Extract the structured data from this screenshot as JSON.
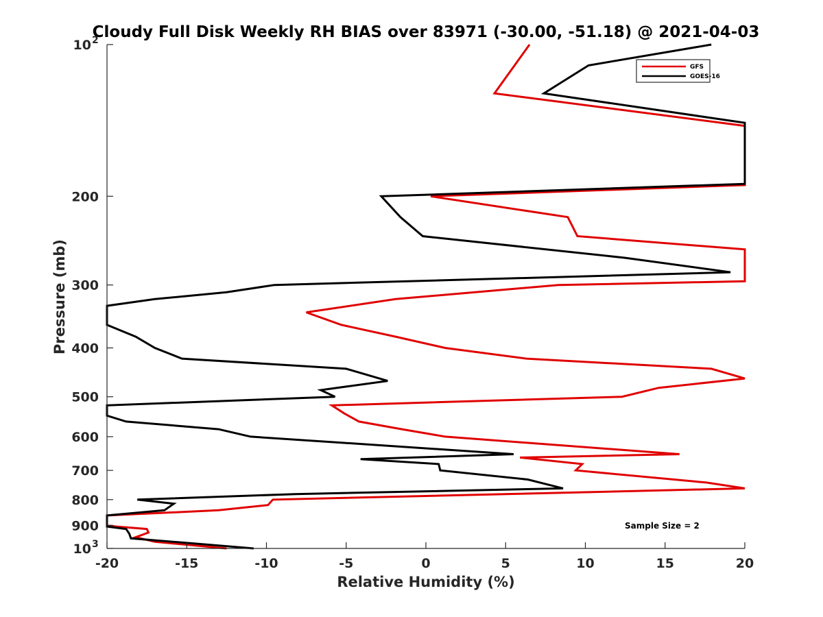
{
  "chart_data": {
    "type": "line",
    "title": "Cloudy Full Disk Weekly RH BIAS over 83971 (-30.00, -51.18) @ 2021-04-03",
    "xlabel": "Relative Humidity (%)",
    "ylabel": "Pressure (mb)",
    "xlim": [
      -20,
      20
    ],
    "ylim": [
      100,
      1000
    ],
    "yscale": "log",
    "y_reversed": true,
    "grid": false,
    "legend_position": "top-right",
    "x_ticks": [
      "-20",
      "-15",
      "-10",
      "-5",
      "0",
      "5",
      "10",
      "15",
      "20"
    ],
    "y_ticks": [
      {
        "value": 100,
        "base": "10",
        "exp": "2"
      },
      {
        "value": 200,
        "label": "200"
      },
      {
        "value": 300,
        "label": "300"
      },
      {
        "value": 400,
        "label": "400"
      },
      {
        "value": 500,
        "label": "500"
      },
      {
        "value": 600,
        "label": "600"
      },
      {
        "value": 700,
        "label": "700"
      },
      {
        "value": 800,
        "label": "800"
      },
      {
        "value": 900,
        "label": "900"
      },
      {
        "value": 1000,
        "base": "10",
        "exp": "3"
      }
    ],
    "annotation": "Sample Size = 2",
    "series": [
      {
        "name": "GFS",
        "color": "#e00000",
        "points": [
          {
            "x": 6.5,
            "y": 100
          },
          {
            "x": 4.3,
            "y": 125
          },
          {
            "x": 20.0,
            "y": 145
          },
          {
            "x": 20.0,
            "y": 190
          },
          {
            "x": 0.3,
            "y": 200
          },
          {
            "x": 8.9,
            "y": 220
          },
          {
            "x": 9.5,
            "y": 240
          },
          {
            "x": 20.0,
            "y": 255
          },
          {
            "x": 20.0,
            "y": 295
          },
          {
            "x": 8.3,
            "y": 300
          },
          {
            "x": -1.9,
            "y": 320
          },
          {
            "x": -7.5,
            "y": 340
          },
          {
            "x": -5.3,
            "y": 360
          },
          {
            "x": -1.9,
            "y": 380
          },
          {
            "x": 1.2,
            "y": 400
          },
          {
            "x": 6.3,
            "y": 420
          },
          {
            "x": 17.9,
            "y": 440
          },
          {
            "x": 20.0,
            "y": 460
          },
          {
            "x": 14.6,
            "y": 480
          },
          {
            "x": 12.3,
            "y": 500
          },
          {
            "x": -5.9,
            "y": 520
          },
          {
            "x": -5.1,
            "y": 540
          },
          {
            "x": -4.2,
            "y": 560
          },
          {
            "x": -1.5,
            "y": 580
          },
          {
            "x": 1.2,
            "y": 600
          },
          {
            "x": 15.9,
            "y": 650
          },
          {
            "x": 5.9,
            "y": 660
          },
          {
            "x": 9.8,
            "y": 680
          },
          {
            "x": 9.4,
            "y": 700
          },
          {
            "x": 17.6,
            "y": 740
          },
          {
            "x": 20.0,
            "y": 760
          },
          {
            "x": -9.6,
            "y": 800
          },
          {
            "x": -9.9,
            "y": 820
          },
          {
            "x": -13.0,
            "y": 840
          },
          {
            "x": -20.0,
            "y": 860
          },
          {
            "x": -20.0,
            "y": 900
          },
          {
            "x": -19.4,
            "y": 905
          },
          {
            "x": -17.5,
            "y": 915
          },
          {
            "x": -17.4,
            "y": 930
          },
          {
            "x": -18.2,
            "y": 950
          },
          {
            "x": -17.0,
            "y": 970
          },
          {
            "x": -12.5,
            "y": 1000
          }
        ]
      },
      {
        "name": "GOES-16",
        "color": "#000000",
        "points": [
          {
            "x": 17.9,
            "y": 100
          },
          {
            "x": 10.2,
            "y": 110
          },
          {
            "x": 7.4,
            "y": 125
          },
          {
            "x": 20.0,
            "y": 143
          },
          {
            "x": 20.0,
            "y": 189
          },
          {
            "x": -2.8,
            "y": 200
          },
          {
            "x": -1.6,
            "y": 220
          },
          {
            "x": -0.2,
            "y": 240
          },
          {
            "x": 12.5,
            "y": 265
          },
          {
            "x": 19.1,
            "y": 283
          },
          {
            "x": -9.5,
            "y": 300
          },
          {
            "x": -12.5,
            "y": 310
          },
          {
            "x": -17.0,
            "y": 320
          },
          {
            "x": -20.0,
            "y": 330
          },
          {
            "x": -20.0,
            "y": 360
          },
          {
            "x": -18.2,
            "y": 380
          },
          {
            "x": -17.0,
            "y": 400
          },
          {
            "x": -15.3,
            "y": 420
          },
          {
            "x": -5.0,
            "y": 440
          },
          {
            "x": -2.4,
            "y": 465
          },
          {
            "x": -6.6,
            "y": 485
          },
          {
            "x": -5.7,
            "y": 500
          },
          {
            "x": -20.0,
            "y": 520
          },
          {
            "x": -20.0,
            "y": 545
          },
          {
            "x": -18.8,
            "y": 560
          },
          {
            "x": -13.0,
            "y": 580
          },
          {
            "x": -11.0,
            "y": 600
          },
          {
            "x": 5.5,
            "y": 650
          },
          {
            "x": -4.1,
            "y": 665
          },
          {
            "x": 0.8,
            "y": 680
          },
          {
            "x": 0.9,
            "y": 700
          },
          {
            "x": 6.4,
            "y": 730
          },
          {
            "x": 8.6,
            "y": 760
          },
          {
            "x": -8.2,
            "y": 780
          },
          {
            "x": -18.1,
            "y": 800
          },
          {
            "x": -15.8,
            "y": 815
          },
          {
            "x": -16.4,
            "y": 840
          },
          {
            "x": -20.0,
            "y": 860
          },
          {
            "x": -20.0,
            "y": 905
          },
          {
            "x": -18.8,
            "y": 915
          },
          {
            "x": -18.6,
            "y": 935
          },
          {
            "x": -18.5,
            "y": 955
          },
          {
            "x": -15.0,
            "y": 975
          },
          {
            "x": -10.8,
            "y": 1000
          }
        ]
      }
    ]
  }
}
